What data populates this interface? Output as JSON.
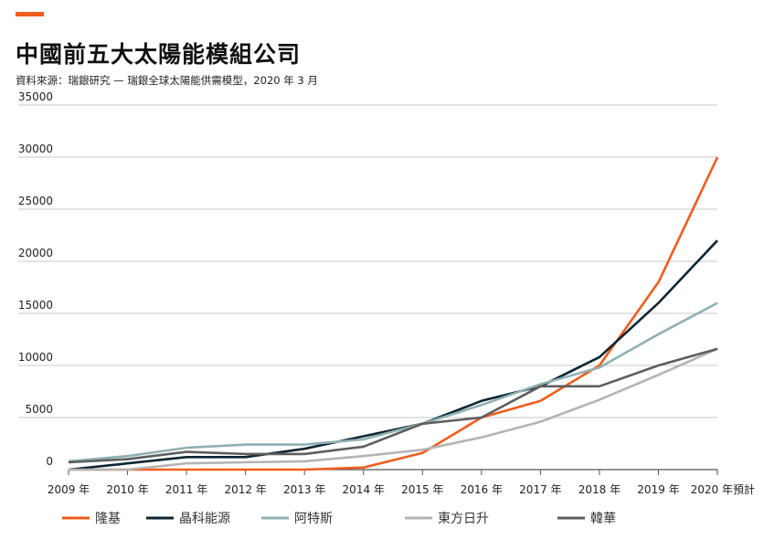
{
  "header": {
    "title": "中國前五大太陽能模組公司",
    "source": "資料來源：瑞銀研究 — 瑞銀全球太陽能供需模型，2020 年 3 月",
    "accent_color": "#f25c1c"
  },
  "chart_data": {
    "type": "line",
    "title": "中國前五大太陽能模組公司",
    "xlabel": "",
    "ylabel": "",
    "x": [
      "2009 年",
      "2010 年",
      "2011 年",
      "2012 年",
      "2013 年",
      "2014 年",
      "2015 年",
      "2016 年",
      "2017 年",
      "2018 年",
      "2019 年",
      "2020 年預計"
    ],
    "ylim": [
      0,
      35000
    ],
    "yticks": [
      "0",
      "5000",
      "10000",
      "15000",
      "20000",
      "25000",
      "30000",
      "35000"
    ],
    "grid": "horizontal",
    "legend": "bottom",
    "series": [
      {
        "name": "隆基",
        "color": "#f25c1c",
        "values": [
          0,
          0,
          0,
          0,
          0,
          200,
          1600,
          5000,
          6600,
          10000,
          18000,
          30000
        ]
      },
      {
        "name": "晶科能源",
        "color": "#0c2533",
        "values": [
          0,
          600,
          1200,
          1200,
          2000,
          3200,
          4400,
          6600,
          8000,
          10800,
          16000,
          22000
        ]
      },
      {
        "name": "阿特斯",
        "color": "#8fb0b3",
        "values": [
          800,
          1300,
          2100,
          2400,
          2400,
          2900,
          4400,
          6200,
          8200,
          9800,
          13000,
          16000
        ]
      },
      {
        "name": "東方日升",
        "color": "#b4b4b4",
        "values": [
          0,
          0,
          600,
          700,
          800,
          1300,
          1900,
          3100,
          4600,
          6700,
          9100,
          11600
        ]
      },
      {
        "name": "韓華",
        "color": "#5e5e5e",
        "values": [
          700,
          1000,
          1700,
          1500,
          1500,
          2200,
          4400,
          5000,
          8000,
          8000,
          10000,
          11600
        ]
      }
    ]
  }
}
